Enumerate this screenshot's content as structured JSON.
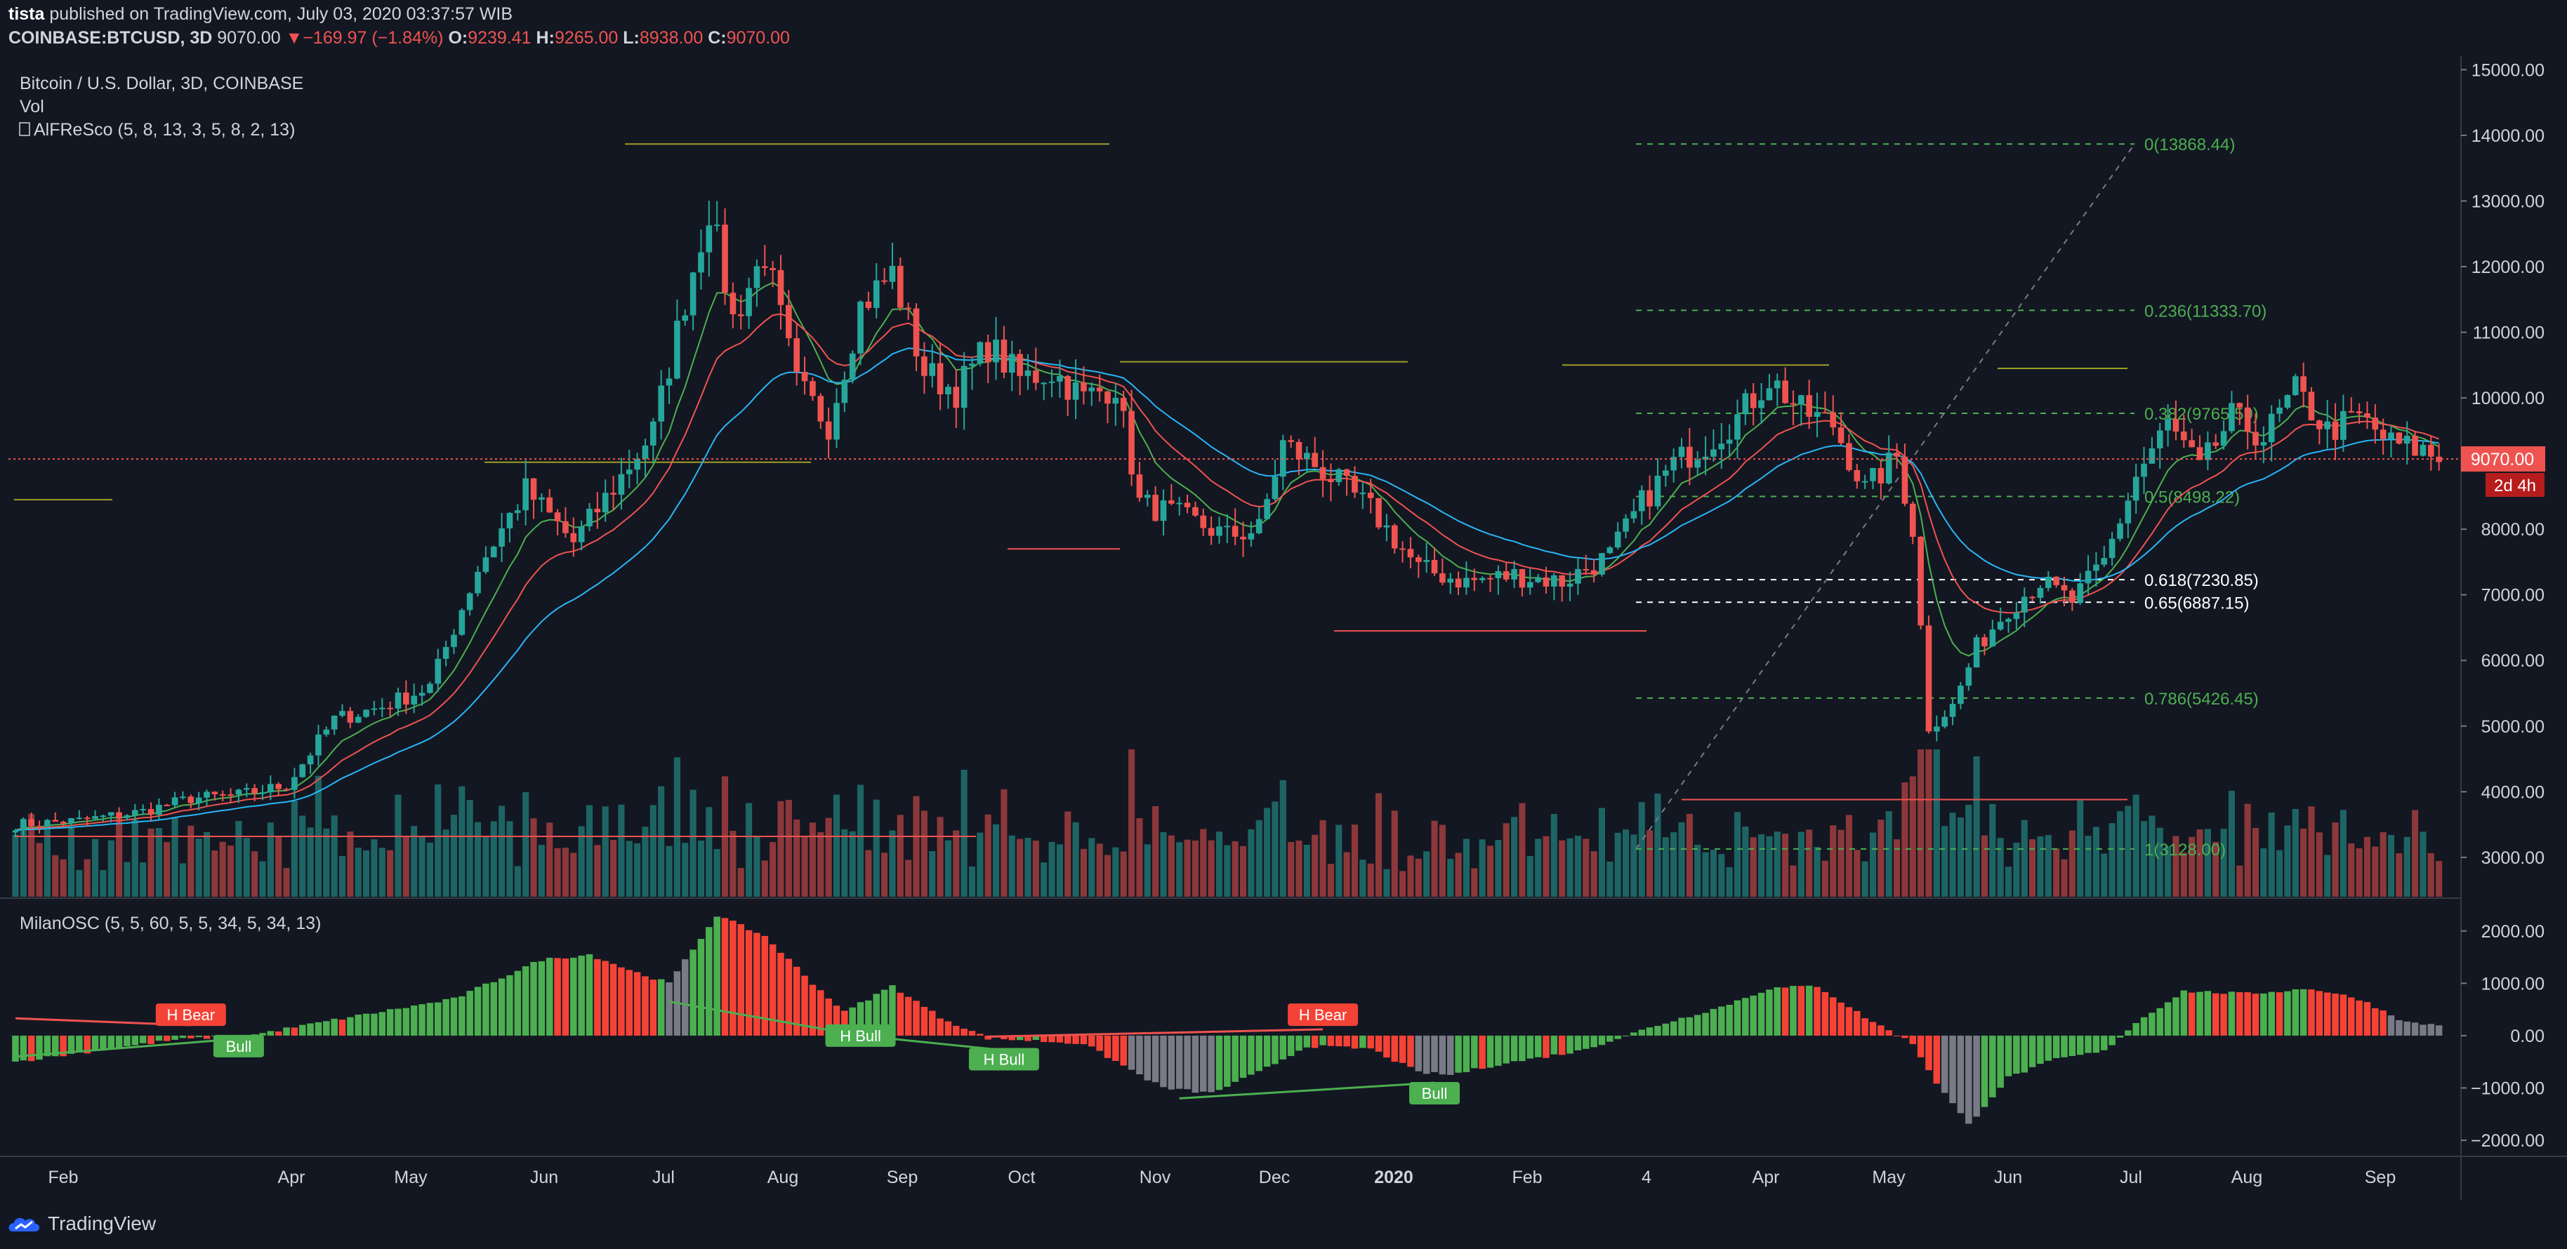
{
  "header": {
    "author": "tista",
    "published_text": "published on TradingView.com, July 03, 2020 03:37:57 WIB",
    "symbol": "COINBASE:BTCUSD, 3D",
    "last_price": "9070.00",
    "change_arrow": "▼",
    "change": "−169.97 (−1.84%)",
    "open_label": "O:",
    "open": "9239.41",
    "high_label": "H:",
    "high": "9265.00",
    "low_label": "L:",
    "low": "8938.00",
    "close_label": "C:",
    "close": "9070.00"
  },
  "legend": {
    "title": "Bitcoin / U.S. Dollar, 3D, COINBASE",
    "vol": "Vol",
    "indicator": "AlFReSco (5, 8, 13, 3, 5, 8, 2, 13)",
    "oscillator": "MilanOSC (5, 5, 60, 5, 5, 34, 5, 34, 13)"
  },
  "price_badge": {
    "value": "9070.00",
    "countdown": "2d 4h"
  },
  "footer": {
    "brand": "TradingView"
  },
  "colors": {
    "bg": "#131722",
    "up": "#26a69a",
    "down": "#ef5350",
    "green_osc": "#4caf50",
    "red_osc": "#f44336",
    "grey_osc": "#787b86",
    "fib": "#4caf50",
    "ema_fast": "#4caf50",
    "ema_mid": "#ef5350",
    "ema_slow": "#29b6f6",
    "level_line": "#9e9d24"
  },
  "chart_data": {
    "type": "candlestick",
    "title": "Bitcoin / U.S. Dollar, 3D, COINBASE",
    "price_axis": {
      "range": [
        2400,
        15100
      ],
      "ticks": [
        "15000.00",
        "14000.00",
        "13000.00",
        "12000.00",
        "11000.00",
        "10000.00",
        "9000.00",
        "8000.00",
        "7000.00",
        "6000.00",
        "5000.00",
        "4000.00",
        "3000.00"
      ]
    },
    "time_axis": {
      "labels": [
        "Feb",
        "Apr",
        "May",
        "Jun",
        "Jul",
        "Aug",
        "Sep",
        "Oct",
        "Nov",
        "Dec",
        "2020",
        "Feb",
        "4",
        "Apr",
        "May",
        "Jun",
        "Jul",
        "Aug",
        "Sep"
      ]
    },
    "fib_levels": [
      {
        "label": "0(13868.44)",
        "value": 13868.44
      },
      {
        "label": "0.236(11333.70)",
        "value": 11333.7
      },
      {
        "label": "0.382(9765.59)",
        "value": 9765.59
      },
      {
        "label": "0.5(8498.22)",
        "value": 8498.22
      },
      {
        "label": "0.618(7230.85)",
        "value": 7230.85
      },
      {
        "label": "0.65(6887.15)",
        "value": 6887.15
      },
      {
        "label": "0.786(5426.45)",
        "value": 5426.45
      },
      {
        "label": "1(3128.00)",
        "value": 3128.0
      }
    ],
    "price_anchors": [
      {
        "t": 0,
        "p": 3500
      },
      {
        "t": 8,
        "p": 3560
      },
      {
        "t": 16,
        "p": 3700
      },
      {
        "t": 22,
        "p": 3900
      },
      {
        "t": 28,
        "p": 3950
      },
      {
        "t": 34,
        "p": 4100
      },
      {
        "t": 40,
        "p": 5100
      },
      {
        "t": 46,
        "p": 5300
      },
      {
        "t": 52,
        "p": 5600
      },
      {
        "t": 58,
        "p": 7400
      },
      {
        "t": 64,
        "p": 8600
      },
      {
        "t": 70,
        "p": 7800
      },
      {
        "t": 76,
        "p": 8800
      },
      {
        "t": 80,
        "p": 9500
      },
      {
        "t": 84,
        "p": 11500
      },
      {
        "t": 87,
        "p": 12900
      },
      {
        "t": 90,
        "p": 11200
      },
      {
        "t": 94,
        "p": 12200
      },
      {
        "t": 98,
        "p": 10200
      },
      {
        "t": 102,
        "p": 9600
      },
      {
        "t": 106,
        "p": 11400
      },
      {
        "t": 110,
        "p": 11900
      },
      {
        "t": 114,
        "p": 10400
      },
      {
        "t": 118,
        "p": 10100
      },
      {
        "t": 122,
        "p": 10800
      },
      {
        "t": 126,
        "p": 10300
      },
      {
        "t": 130,
        "p": 10400
      },
      {
        "t": 134,
        "p": 10000
      },
      {
        "t": 138,
        "p": 10200
      },
      {
        "t": 141,
        "p": 8400
      },
      {
        "t": 146,
        "p": 8200
      },
      {
        "t": 152,
        "p": 7900
      },
      {
        "t": 156,
        "p": 8000
      },
      {
        "t": 159,
        "p": 9300
      },
      {
        "t": 164,
        "p": 8900
      },
      {
        "t": 170,
        "p": 8300
      },
      {
        "t": 176,
        "p": 7400
      },
      {
        "t": 182,
        "p": 7200
      },
      {
        "t": 188,
        "p": 7300
      },
      {
        "t": 194,
        "p": 7200
      },
      {
        "t": 200,
        "p": 7600
      },
      {
        "t": 204,
        "p": 8400
      },
      {
        "t": 208,
        "p": 9000
      },
      {
        "t": 212,
        "p": 9300
      },
      {
        "t": 216,
        "p": 9700
      },
      {
        "t": 220,
        "p": 10300
      },
      {
        "t": 224,
        "p": 9800
      },
      {
        "t": 228,
        "p": 9600
      },
      {
        "t": 232,
        "p": 8600
      },
      {
        "t": 236,
        "p": 9100
      },
      {
        "t": 238,
        "p": 8000
      },
      {
        "t": 240,
        "p": 5000
      },
      {
        "t": 243,
        "p": 5300
      },
      {
        "t": 246,
        "p": 6200
      },
      {
        "t": 250,
        "p": 6800
      },
      {
        "t": 254,
        "p": 7200
      },
      {
        "t": 258,
        "p": 6900
      },
      {
        "t": 262,
        "p": 7500
      },
      {
        "t": 266,
        "p": 8800
      },
      {
        "t": 270,
        "p": 9600
      },
      {
        "t": 274,
        "p": 8900
      },
      {
        "t": 278,
        "p": 9700
      },
      {
        "t": 282,
        "p": 9400
      },
      {
        "t": 286,
        "p": 10100
      },
      {
        "t": 290,
        "p": 9500
      },
      {
        "t": 294,
        "p": 9700
      },
      {
        "t": 298,
        "p": 9300
      },
      {
        "t": 302,
        "p": 9200
      },
      {
        "t": 304,
        "p": 9070
      }
    ],
    "oscillator": {
      "range": [
        -2200,
        2600
      ],
      "ticks": [
        "2000.00",
        "1000.00",
        "0.00",
        "−1000.00",
        "−2000.00"
      ],
      "anchors": [
        {
          "t": 0,
          "v": -500
        },
        {
          "t": 20,
          "v": -80
        },
        {
          "t": 30,
          "v": 20
        },
        {
          "t": 40,
          "v": 300
        },
        {
          "t": 55,
          "v": 700
        },
        {
          "t": 66,
          "v": 1450
        },
        {
          "t": 72,
          "v": 1550
        },
        {
          "t": 78,
          "v": 1200
        },
        {
          "t": 82,
          "v": 1000
        },
        {
          "t": 88,
          "v": 2300
        },
        {
          "t": 94,
          "v": 1900
        },
        {
          "t": 100,
          "v": 1000
        },
        {
          "t": 104,
          "v": 450
        },
        {
          "t": 110,
          "v": 950
        },
        {
          "t": 116,
          "v": 350
        },
        {
          "t": 122,
          "v": -50
        },
        {
          "t": 134,
          "v": -150
        },
        {
          "t": 144,
          "v": -1000
        },
        {
          "t": 150,
          "v": -1100
        },
        {
          "t": 156,
          "v": -700
        },
        {
          "t": 162,
          "v": -200
        },
        {
          "t": 170,
          "v": -250
        },
        {
          "t": 176,
          "v": -700
        },
        {
          "t": 180,
          "v": -750
        },
        {
          "t": 186,
          "v": -550
        },
        {
          "t": 196,
          "v": -300
        },
        {
          "t": 206,
          "v": 200
        },
        {
          "t": 214,
          "v": 550
        },
        {
          "t": 220,
          "v": 900
        },
        {
          "t": 226,
          "v": 950
        },
        {
          "t": 232,
          "v": 350
        },
        {
          "t": 238,
          "v": -150
        },
        {
          "t": 241,
          "v": -900
        },
        {
          "t": 245,
          "v": -1700
        },
        {
          "t": 250,
          "v": -800
        },
        {
          "t": 256,
          "v": -450
        },
        {
          "t": 262,
          "v": -300
        },
        {
          "t": 266,
          "v": 250
        },
        {
          "t": 272,
          "v": 850
        },
        {
          "t": 280,
          "v": 800
        },
        {
          "t": 288,
          "v": 900
        },
        {
          "t": 294,
          "v": 700
        },
        {
          "t": 300,
          "v": 250
        },
        {
          "t": 304,
          "v": 200
        }
      ],
      "labels": [
        {
          "text": "H Bear",
          "kind": "bear",
          "t": 22,
          "v": 400
        },
        {
          "text": "Bull",
          "kind": "bull",
          "t": 28,
          "v": -200
        },
        {
          "text": "H Bull",
          "kind": "bull",
          "t": 106,
          "v": 0
        },
        {
          "text": "H Bull",
          "kind": "bull",
          "t": 124,
          "v": -450
        },
        {
          "text": "H Bear",
          "kind": "bear",
          "t": 164,
          "v": 400
        },
        {
          "text": "Bull",
          "kind": "bull",
          "t": 178,
          "v": -1100
        }
      ]
    }
  }
}
